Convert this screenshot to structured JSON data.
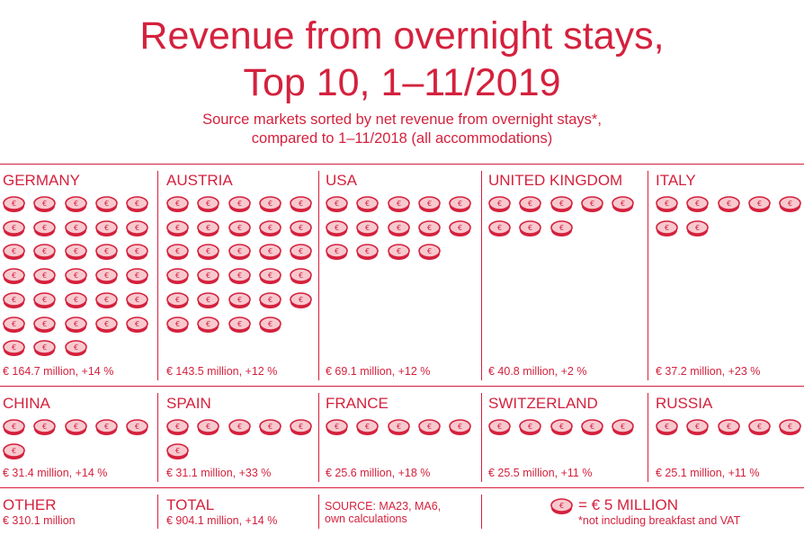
{
  "title_line1": "Revenue from overnight stays,",
  "title_line2": "Top 10, 1–11/2019",
  "subtitle_line1": "Source markets sorted by net revenue from overnight stays*,",
  "subtitle_line2": "compared to 1–11/2018 (all accommodations)",
  "chart_data": {
    "type": "pictogram",
    "unit_label": "= € 5 MILLION",
    "unit_value_million_eur": 5,
    "series": [
      {
        "name": "GERMANY",
        "coins": 33,
        "label": "€ 164.7 million, +14 %",
        "revenue_million_eur": 164.7,
        "change_pct": 14
      },
      {
        "name": "AUSTRIA",
        "coins": 29,
        "label": "€ 143.5 million, +12 %",
        "revenue_million_eur": 143.5,
        "change_pct": 12
      },
      {
        "name": "USA",
        "coins": 14,
        "label": "€ 69.1 million, +12 %",
        "revenue_million_eur": 69.1,
        "change_pct": 12
      },
      {
        "name": "UNITED KINGDOM",
        "coins": 8,
        "label": "€ 40.8 million, +2 %",
        "revenue_million_eur": 40.8,
        "change_pct": 2
      },
      {
        "name": "ITALY",
        "coins": 7,
        "label": "€ 37.2 million, +23 %",
        "revenue_million_eur": 37.2,
        "change_pct": 23
      },
      {
        "name": "CHINA",
        "coins": 6,
        "label": "€ 31.4 million, +14 %",
        "revenue_million_eur": 31.4,
        "change_pct": 14
      },
      {
        "name": "SPAIN",
        "coins": 6,
        "label": "€ 31.1 million, +33 %",
        "revenue_million_eur": 31.1,
        "change_pct": 33
      },
      {
        "name": "FRANCE",
        "coins": 5,
        "label": "€ 25.6 million, +18 %",
        "revenue_million_eur": 25.6,
        "change_pct": 18
      },
      {
        "name": "SWITZERLAND",
        "coins": 5,
        "label": "€ 25.5 million, +11 %",
        "revenue_million_eur": 25.5,
        "change_pct": 11
      },
      {
        "name": "RUSSIA",
        "coins": 5,
        "label": "€ 25.1 million, +11 %",
        "revenue_million_eur": 25.1,
        "change_pct": 11
      }
    ]
  },
  "footer": {
    "other_label": "OTHER",
    "other_value": "€ 310.1 million",
    "total_label": "TOTAL",
    "total_value": "€ 904.1 million, +14 %",
    "source_line1": "SOURCE: MA23, MA6,",
    "source_line2": "own calculations",
    "legend_text": "= € 5 MILLION",
    "footnote": "*not including breakfast and VAT"
  },
  "colors": {
    "accent": "#d4213d",
    "coin_fill": "#f7c9cf"
  }
}
